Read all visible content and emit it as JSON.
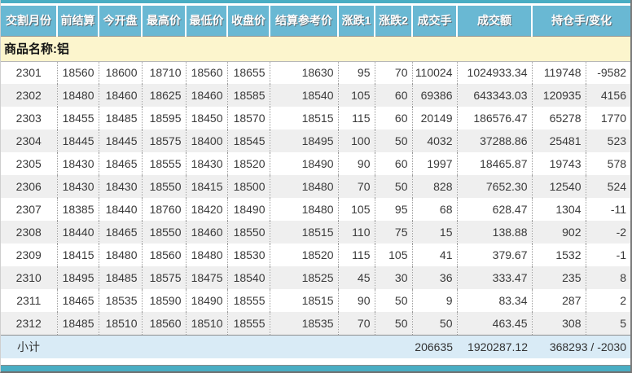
{
  "colors": {
    "accent_teal": "#49adc3",
    "header_bg": "#69b8d3",
    "header_text": "#ffffff",
    "product_row_bg": "#fcf5cd",
    "row_alt_bg": "#efefef",
    "subtotal_bg": "#d9ebf6",
    "data_text": "#3a3a3a"
  },
  "table": {
    "headers": [
      "交割月份",
      "前结算",
      "今开盘",
      "最高价",
      "最低价",
      "收盘价",
      "结算参考价",
      "涨跌1",
      "涨跌2",
      "成交手",
      "成交额",
      "持仓手/变化"
    ],
    "product_row": {
      "label": "商品名称:铝"
    },
    "rows": [
      [
        "2301",
        "18560",
        "18600",
        "18710",
        "18560",
        "18655",
        "18630",
        "95",
        "70",
        "110024",
        "1024933.34",
        "119748",
        "-9582"
      ],
      [
        "2302",
        "18480",
        "18460",
        "18625",
        "18460",
        "18585",
        "18540",
        "105",
        "60",
        "69386",
        "643343.03",
        "120935",
        "4156"
      ],
      [
        "2303",
        "18455",
        "18485",
        "18595",
        "18450",
        "18570",
        "18515",
        "115",
        "60",
        "20149",
        "186576.47",
        "65278",
        "1770"
      ],
      [
        "2304",
        "18445",
        "18445",
        "18575",
        "18400",
        "18545",
        "18495",
        "100",
        "50",
        "4032",
        "37288.86",
        "25481",
        "523"
      ],
      [
        "2305",
        "18430",
        "18465",
        "18555",
        "18430",
        "18520",
        "18490",
        "90",
        "60",
        "1997",
        "18465.87",
        "19743",
        "578"
      ],
      [
        "2306",
        "18430",
        "18430",
        "18550",
        "18415",
        "18500",
        "18480",
        "70",
        "50",
        "828",
        "7652.30",
        "12540",
        "524"
      ],
      [
        "2307",
        "18385",
        "18440",
        "18760",
        "18420",
        "18490",
        "18480",
        "105",
        "95",
        "68",
        "628.47",
        "1304",
        "-11"
      ],
      [
        "2308",
        "18440",
        "18465",
        "18550",
        "18460",
        "18550",
        "18515",
        "110",
        "75",
        "15",
        "138.88",
        "902",
        "-2"
      ],
      [
        "2309",
        "18415",
        "18480",
        "18560",
        "18480",
        "18530",
        "18520",
        "115",
        "105",
        "41",
        "379.67",
        "1532",
        "-1"
      ],
      [
        "2310",
        "18495",
        "18485",
        "18575",
        "18475",
        "18540",
        "18525",
        "45",
        "30",
        "36",
        "333.47",
        "235",
        "8"
      ],
      [
        "2311",
        "18465",
        "18535",
        "18590",
        "18490",
        "18555",
        "18515",
        "90",
        "50",
        "9",
        "83.34",
        "287",
        "2"
      ],
      [
        "2312",
        "18485",
        "18510",
        "18560",
        "18510",
        "18555",
        "18535",
        "70",
        "50",
        "50",
        "463.45",
        "308",
        "5"
      ]
    ],
    "subtotal": {
      "label": "小计",
      "volume": "206635",
      "turnover": "1920287.12",
      "open_interest_change": "368293 / -2030"
    }
  }
}
